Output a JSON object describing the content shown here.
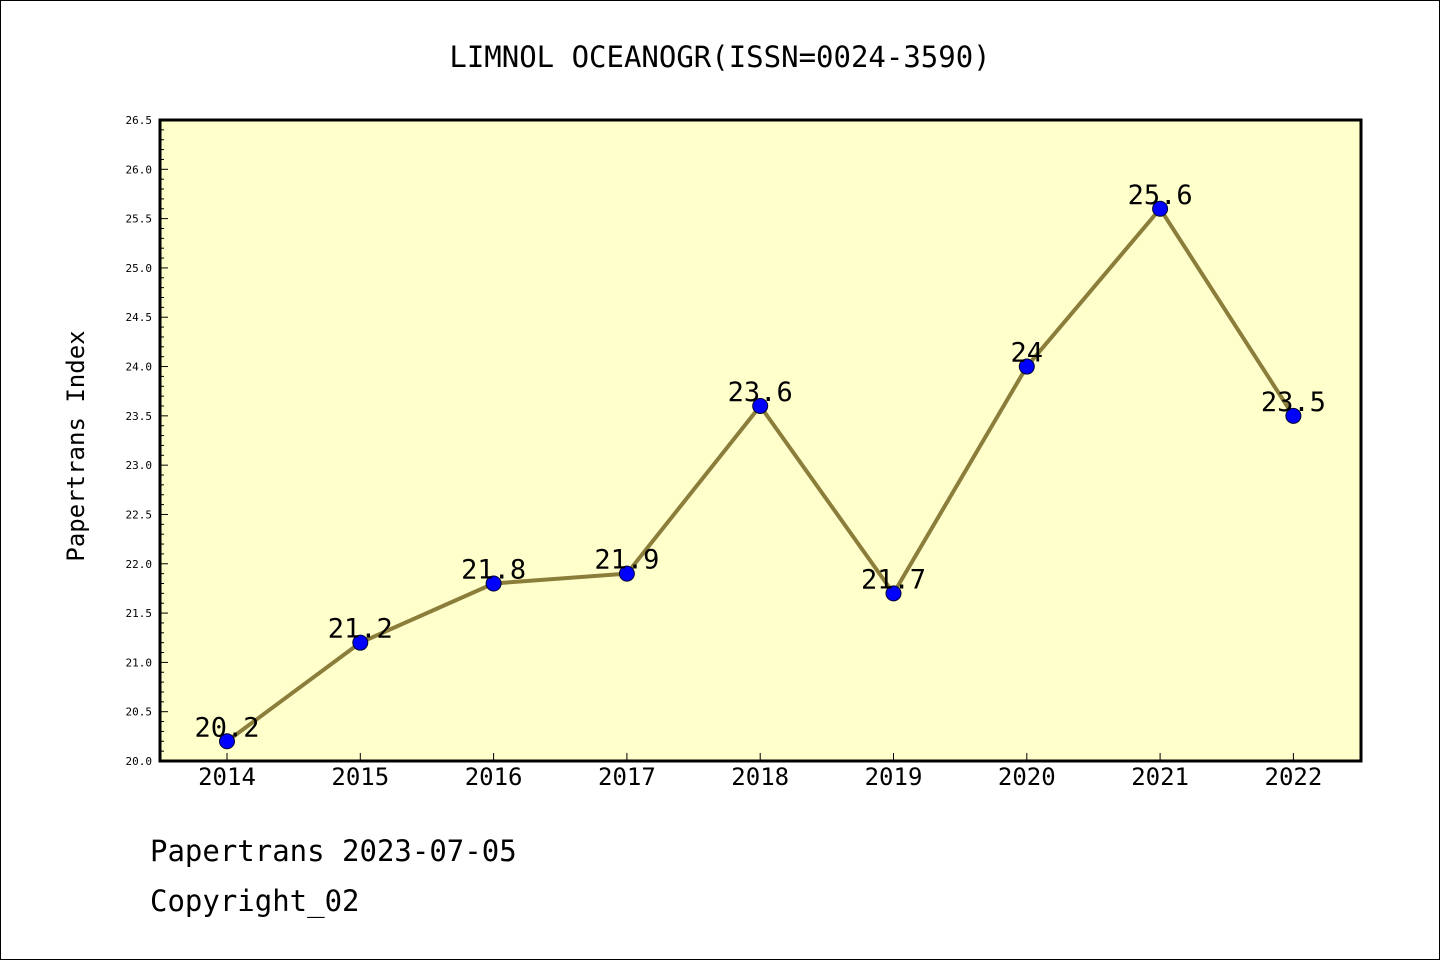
{
  "chart_data": {
    "type": "line",
    "title": "LIMNOL OCEANOGR(ISSN=0024-3590)",
    "xlabel": "",
    "ylabel": "Papertrans Index",
    "categories": [
      "2014",
      "2015",
      "2016",
      "2017",
      "2018",
      "2019",
      "2020",
      "2021",
      "2022"
    ],
    "series": [
      {
        "values": [
          20.2,
          21.2,
          21.8,
          21.9,
          23.6,
          21.7,
          24,
          25.6,
          23.5
        ],
        "data_labels": [
          "20.2",
          "21.2",
          "21.8",
          "21.9",
          "23.6",
          "21.7",
          "24",
          "25.6",
          "23.5"
        ]
      }
    ],
    "ylim": [
      20.0,
      26.5
    ],
    "yticks": [
      "20.0",
      "20.5",
      "21.0",
      "21.5",
      "22.0",
      "22.5",
      "23.0",
      "23.5",
      "24.0",
      "24.5",
      "25.0",
      "25.5",
      "26.0",
      "26.5"
    ],
    "grid": false,
    "legend": "none",
    "colors": {
      "plot_background": "#ffffcc",
      "line": "#8b7d3a",
      "marker": "#0000ff"
    }
  },
  "footer": {
    "date_text": "Papertrans 2023-07-05",
    "copyright_text": "Copyright_02"
  }
}
